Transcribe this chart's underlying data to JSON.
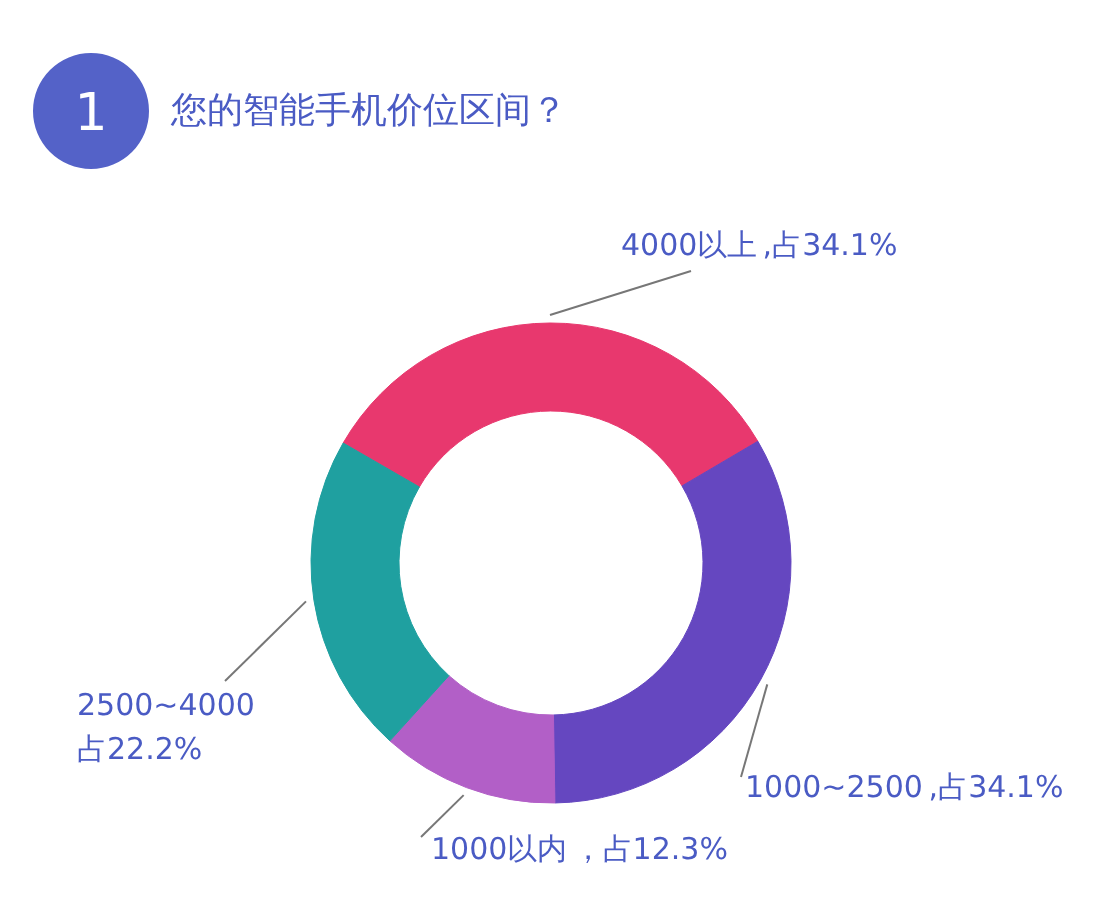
{
  "chart_data": {
    "type": "donut",
    "title": "您的智能手机价位区间？",
    "annotations": [
      "1"
    ],
    "categories": [
      "4000以上",
      "1000~2500",
      "1000以内",
      "2500~4000"
    ],
    "values": [
      34.1,
      34.1,
      12.3,
      22.2
    ],
    "colors": [
      "#e8386e",
      "#6547c0",
      "#b25fc7",
      "#1fa0a0"
    ],
    "value_labels": [
      ",占34.1%",
      ",占34.1%",
      "，占12.3%",
      "\n占22.2%"
    ]
  }
}
